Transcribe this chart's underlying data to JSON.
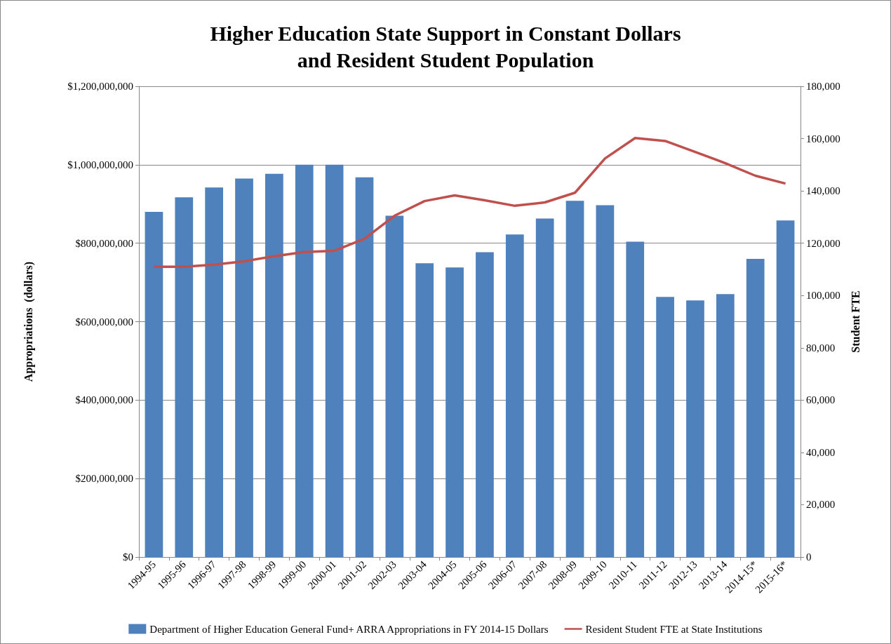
{
  "chart_data": {
    "type": "bar",
    "title": "Higher Education State Support in Constant Dollars\nand Resident Student Population",
    "ylabel": "Appropriations  (dollars)",
    "y2label": "Student FTE",
    "categories": [
      "1994-95",
      "1995-96",
      "1996-97",
      "1997-98",
      "1998-99",
      "1999-00",
      "2000-01",
      "2001-02",
      "2002-03",
      "2003-04",
      "2004-05",
      "2005-06",
      "2006-07",
      "2007-08",
      "2008-09",
      "2009-10",
      "2010-11",
      "2011-12",
      "2012-13",
      "2013-14",
      "2014-15*",
      "2015-16*"
    ],
    "series": [
      {
        "name": "Department of Higher Education General Fund+ ARRA Appropriations in FY 2014-15 Dollars",
        "color": "#4f81bd",
        "values": [
          880000000,
          917000000,
          942000000,
          965000000,
          977000000,
          1000000000,
          1000000000,
          968000000,
          870000000,
          749000000,
          738000000,
          777000000,
          822000000,
          863000000,
          908000000,
          897000000,
          804000000,
          663000000,
          654000000,
          670000000,
          760000000,
          858000000
        ]
      },
      {
        "name": "Resident Student FTE at State Institutions",
        "type": "line",
        "axis": "y2",
        "color": "#c0504d",
        "values": [
          111000,
          111000,
          111800,
          113100,
          115000,
          116600,
          117100,
          121700,
          130500,
          136100,
          138300,
          136400,
          134300,
          135600,
          139300,
          152400,
          160200,
          159100,
          154900,
          150600,
          145800,
          142800
        ]
      }
    ],
    "ylim": [
      0,
      1200000000
    ],
    "yticks": [
      {
        "value": 0,
        "label": "$0"
      },
      {
        "value": 200000000,
        "label": "$200,000,000"
      },
      {
        "value": 400000000,
        "label": "$400,000,000"
      },
      {
        "value": 600000000,
        "label": "$600,000,000"
      },
      {
        "value": 800000000,
        "label": "$800,000,000"
      },
      {
        "value": 1000000000,
        "label": "$1,000,000,000"
      },
      {
        "value": 1200000000,
        "label": "$1,200,000,000"
      }
    ],
    "y2lim": [
      0,
      180000
    ],
    "y2ticks": [
      0,
      {
        "value": 20000,
        "label": "20,000"
      },
      {
        "value": 40000,
        "label": "40,000"
      },
      {
        "value": 60000,
        "label": "60,000"
      },
      {
        "value": 80000,
        "label": "80,000"
      },
      {
        "value": 100000,
        "label": "100,000"
      },
      {
        "value": 120000,
        "label": "120,000"
      },
      {
        "value": 140000,
        "label": "140,000"
      },
      {
        "value": 160000,
        "label": "160,000"
      },
      {
        "value": 180000,
        "label": "180,000"
      }
    ],
    "grid": "y",
    "legend": "bottom",
    "marker": "none",
    "line_style": "solid"
  }
}
